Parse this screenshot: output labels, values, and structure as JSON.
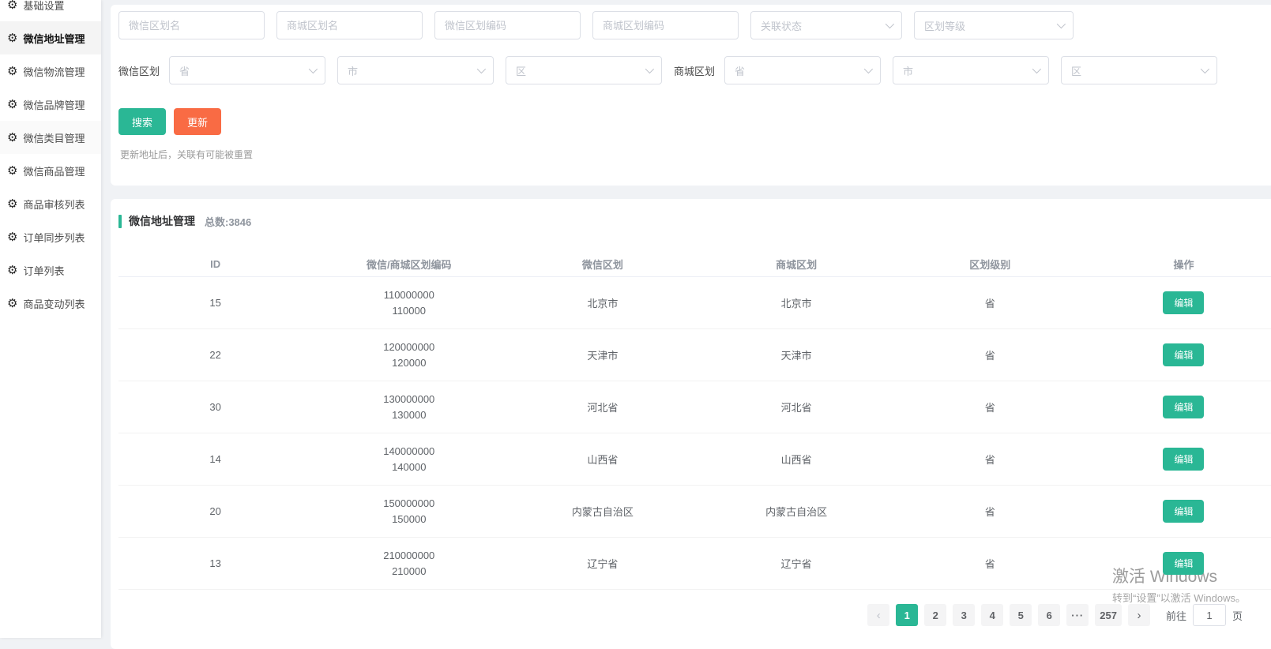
{
  "sidebar": {
    "items": [
      {
        "label": "基础设置"
      },
      {
        "label": "微信地址管理"
      },
      {
        "label": "微信物流管理"
      },
      {
        "label": "微信品牌管理"
      },
      {
        "label": "微信类目管理"
      },
      {
        "label": "微信商品管理"
      },
      {
        "label": "商品审核列表"
      },
      {
        "label": "订单同步列表"
      },
      {
        "label": "订单列表"
      },
      {
        "label": "商品变动列表"
      }
    ]
  },
  "filters": {
    "inputs": [
      {
        "placeholder": "微信区划名"
      },
      {
        "placeholder": "商城区划名"
      },
      {
        "placeholder": "微信区划编码"
      },
      {
        "placeholder": "商城区划编码"
      }
    ],
    "selects": [
      {
        "placeholder": "关联状态"
      },
      {
        "placeholder": "区划等级"
      }
    ],
    "wechat_region": {
      "label": "微信区划",
      "selects": [
        "省",
        "市",
        "区"
      ]
    },
    "mall_region": {
      "label": "商城区划",
      "selects": [
        "省",
        "市",
        "区"
      ]
    },
    "search_button": "搜索",
    "update_button": "更新",
    "note": "更新地址后，关联有可能被重置"
  },
  "table_section": {
    "title": "微信地址管理",
    "total_label": "总数:3846",
    "columns": [
      "ID",
      "微信/商城区划编码",
      "微信区划",
      "商城区划",
      "区划级别",
      "操作"
    ],
    "edit_label": "编辑",
    "rows": [
      {
        "id": "15",
        "wechat_code": "110000000",
        "mall_code": "110000",
        "wechat_region": "北京市",
        "mall_region": "北京市",
        "level": "省"
      },
      {
        "id": "22",
        "wechat_code": "120000000",
        "mall_code": "120000",
        "wechat_region": "天津市",
        "mall_region": "天津市",
        "level": "省"
      },
      {
        "id": "30",
        "wechat_code": "130000000",
        "mall_code": "130000",
        "wechat_region": "河北省",
        "mall_region": "河北省",
        "level": "省"
      },
      {
        "id": "14",
        "wechat_code": "140000000",
        "mall_code": "140000",
        "wechat_region": "山西省",
        "mall_region": "山西省",
        "level": "省"
      },
      {
        "id": "20",
        "wechat_code": "150000000",
        "mall_code": "150000",
        "wechat_region": "内蒙古自治区",
        "mall_region": "内蒙古自治区",
        "level": "省"
      },
      {
        "id": "13",
        "wechat_code": "210000000",
        "mall_code": "210000",
        "wechat_region": "辽宁省",
        "mall_region": "辽宁省",
        "level": "省"
      }
    ]
  },
  "pagination": {
    "prev": "‹",
    "next": "›",
    "pages": [
      "1",
      "2",
      "3",
      "4",
      "5",
      "6",
      "···",
      "257"
    ],
    "active_page": "1",
    "goto_label": "前往",
    "goto_value": "1",
    "page_unit": "页"
  },
  "watermark": {
    "line1": "激活 Windows",
    "line2": "转到“设置”以激活 Windows。"
  },
  "colors": {
    "primary_green": "#2ab795",
    "accent_orange": "#f96b44"
  }
}
